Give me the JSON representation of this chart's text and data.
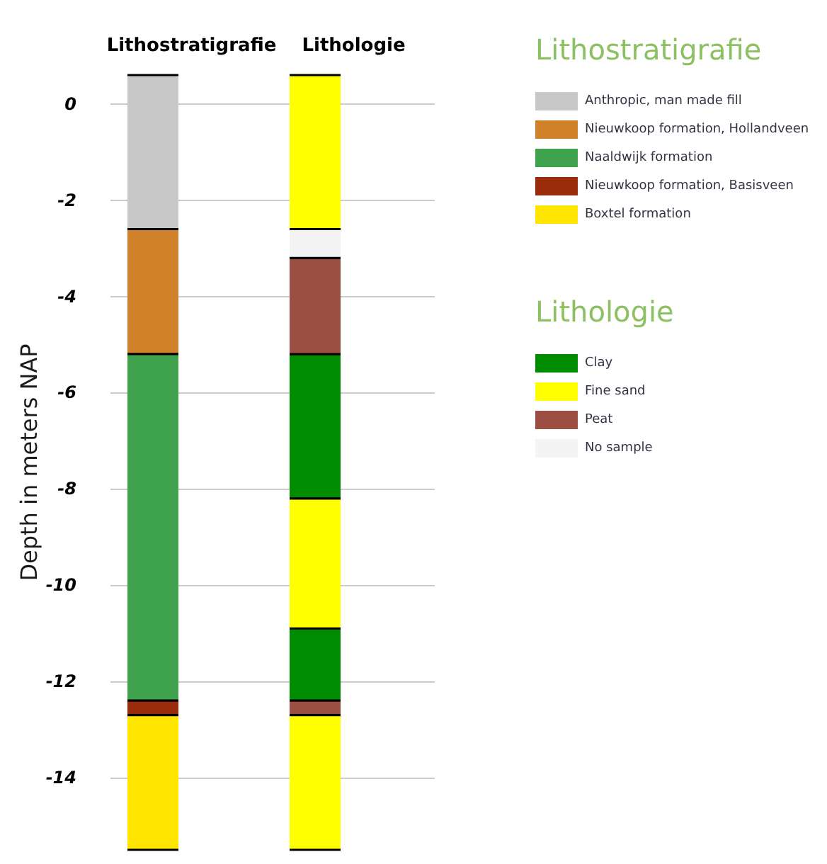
{
  "chart_data": {
    "type": "bar",
    "ylabel": "Depth in meters NAP",
    "categories": [
      "Lithostratigrafie",
      "Lithologie"
    ],
    "ylim": [
      -15.5,
      0.6
    ],
    "yticks": [
      0,
      -2,
      -4,
      -6,
      -8,
      -10,
      -12,
      -14
    ],
    "grid": "y",
    "legend": "right",
    "series": [
      {
        "name": "Anthropic, man made fill",
        "color": "#c8c8c8",
        "values": [
          -3.2,
          null
        ],
        "base": [
          0.6,
          null
        ]
      },
      {
        "name": "Nieuwkoop formation, Hollandveen",
        "color": "#d0812a",
        "values": [
          -2.6,
          null
        ],
        "base": [
          -2.6,
          null
        ]
      },
      {
        "name": "Naaldwijk formation",
        "color": "#3fa34d",
        "values": [
          -7.2,
          null
        ],
        "base": [
          -5.2,
          null
        ]
      },
      {
        "name": "Nieuwkoop formation, Basisveen",
        "color": "#9b2c0b",
        "values": [
          -0.3,
          null
        ],
        "base": [
          -12.4,
          null
        ]
      },
      {
        "name": "Boxtel formation",
        "color": "#ffe500",
        "values": [
          -2.8,
          null
        ],
        "base": [
          -12.7,
          null
        ]
      },
      {
        "name": "Clay",
        "color": "#008c00",
        "values": [
          null,
          -3
        ],
        "base": [
          null,
          -5.2
        ]
      },
      {
        "name": "Fine sand",
        "color": "#ffff00",
        "values": [
          null,
          -3.2
        ],
        "base": [
          null,
          0.6
        ]
      },
      {
        "name": "Peat",
        "color": "#9b4f42",
        "values": [
          null,
          -2
        ],
        "base": [
          null,
          -3.2
        ]
      },
      {
        "name": "No sample",
        "color": "#f4f4f4",
        "values": [
          null,
          -0.6
        ],
        "base": [
          null,
          -2.6
        ]
      },
      {
        "color": "#008c00",
        "values": [
          null,
          -1.5
        ],
        "base": [
          null,
          -10.9
        ]
      },
      {
        "color": "#ffff00",
        "values": [
          null,
          -2.7
        ],
        "base": [
          null,
          -8.2
        ]
      },
      {
        "color": "#9b4f42",
        "values": [
          null,
          -0.3
        ],
        "base": [
          null,
          -12.4
        ]
      },
      {
        "color": "#ffff00",
        "values": [
          null,
          -2.8
        ],
        "base": [
          null,
          -12.7
        ]
      }
    ]
  }
}
